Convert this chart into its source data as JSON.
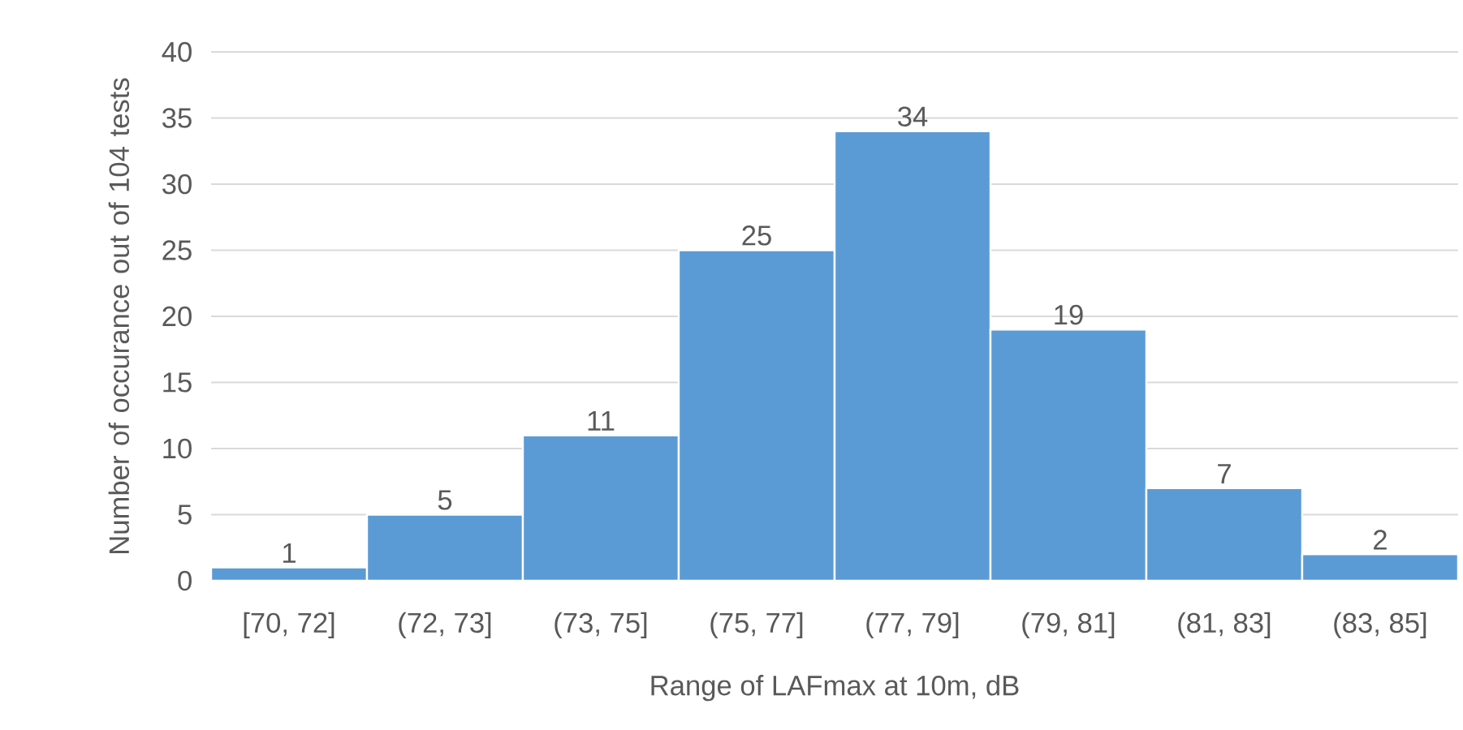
{
  "chart_data": {
    "type": "bar",
    "xlabel": "Range of LAFmax at 10m, dB",
    "ylabel": "Number of occurance out of 104 tests",
    "categories": [
      "[70, 72]",
      "(72, 73]",
      "(73, 75]",
      "(75, 77]",
      "(77, 79]",
      "(79, 81]",
      "(81, 83]",
      "(83, 85]"
    ],
    "values": [
      1,
      5,
      11,
      25,
      34,
      19,
      7,
      2
    ],
    "color": "#5b9bd5",
    "ylim": [
      0,
      40
    ],
    "yticks": [
      0,
      5,
      10,
      15,
      20,
      25,
      30,
      35,
      40
    ],
    "grid": "y",
    "data_labels": true
  }
}
